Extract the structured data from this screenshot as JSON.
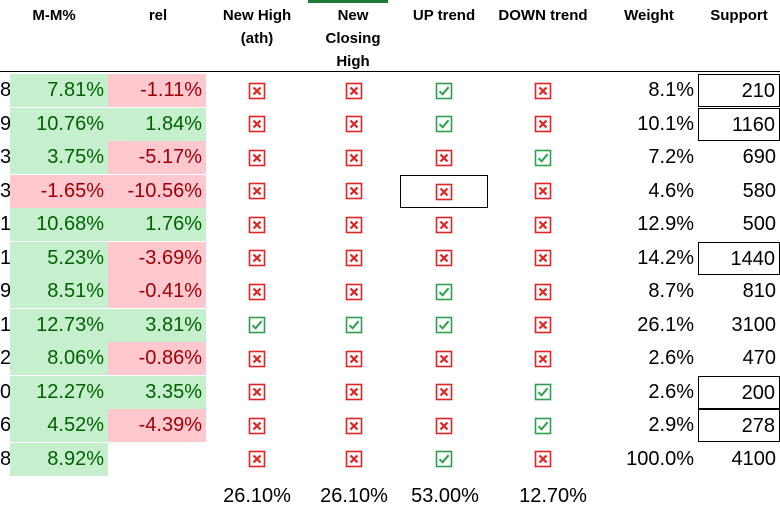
{
  "colors": {
    "positive_bg": "#c6efce",
    "positive_text": "#006100",
    "negative_bg": "#ffc7ce",
    "negative_text": "#9c0006",
    "check_green": "#2e9e4f",
    "cross_red": "#e02424"
  },
  "headers": {
    "mm": "M-M%",
    "rel": "rel",
    "new_high": "New High\n(ath)",
    "new_closing_high": "New\nClosing\nHigh",
    "up_trend": "UP trend",
    "down_trend": "DOWN trend",
    "weight": "Weight",
    "support": "Support"
  },
  "rows": [
    {
      "lead": "8",
      "mm": "7.81%",
      "mm_sign": "pos",
      "rel": "-1.11%",
      "rel_sign": "neg",
      "new_high": "cross",
      "new_closing_high": "cross",
      "up_trend": "check",
      "down_trend": "cross",
      "weight": "8.1%",
      "support": "210"
    },
    {
      "lead": "9",
      "mm": "10.76%",
      "mm_sign": "pos",
      "rel": "1.84%",
      "rel_sign": "pos",
      "new_high": "cross",
      "new_closing_high": "cross",
      "up_trend": "check",
      "down_trend": "cross",
      "weight": "10.1%",
      "support": "1160"
    },
    {
      "lead": "3",
      "mm": "3.75%",
      "mm_sign": "pos",
      "rel": "-5.17%",
      "rel_sign": "neg",
      "new_high": "cross",
      "new_closing_high": "cross",
      "up_trend": "cross",
      "down_trend": "check",
      "weight": "7.2%",
      "support": "690"
    },
    {
      "lead": "3",
      "mm": "-1.65%",
      "mm_sign": "neg",
      "rel": "-10.56%",
      "rel_sign": "neg",
      "new_high": "cross",
      "new_closing_high": "cross",
      "up_trend": "cross",
      "down_trend": "cross",
      "weight": "4.6%",
      "support": "580"
    },
    {
      "lead": "1",
      "mm": "10.68%",
      "mm_sign": "pos",
      "rel": "1.76%",
      "rel_sign": "pos",
      "new_high": "cross",
      "new_closing_high": "cross",
      "up_trend": "cross",
      "down_trend": "cross",
      "weight": "12.9%",
      "support": "500"
    },
    {
      "lead": "1",
      "mm": "5.23%",
      "mm_sign": "pos",
      "rel": "-3.69%",
      "rel_sign": "neg",
      "new_high": "cross",
      "new_closing_high": "cross",
      "up_trend": "cross",
      "down_trend": "cross",
      "weight": "14.2%",
      "support": "1440"
    },
    {
      "lead": "9",
      "mm": "8.51%",
      "mm_sign": "pos",
      "rel": "-0.41%",
      "rel_sign": "neg",
      "new_high": "cross",
      "new_closing_high": "cross",
      "up_trend": "check",
      "down_trend": "cross",
      "weight": "8.7%",
      "support": "810"
    },
    {
      "lead": "1",
      "mm": "12.73%",
      "mm_sign": "pos",
      "rel": "3.81%",
      "rel_sign": "pos",
      "new_high": "check",
      "new_closing_high": "check",
      "up_trend": "check",
      "down_trend": "cross",
      "weight": "26.1%",
      "support": "3100"
    },
    {
      "lead": "2",
      "mm": "8.06%",
      "mm_sign": "pos",
      "rel": "-0.86%",
      "rel_sign": "neg",
      "new_high": "cross",
      "new_closing_high": "cross",
      "up_trend": "cross",
      "down_trend": "cross",
      "weight": "2.6%",
      "support": "470"
    },
    {
      "lead": "0",
      "mm": "12.27%",
      "mm_sign": "pos",
      "rel": "3.35%",
      "rel_sign": "pos",
      "new_high": "cross",
      "new_closing_high": "cross",
      "up_trend": "cross",
      "down_trend": "check",
      "weight": "2.6%",
      "support": "200"
    },
    {
      "lead": "6",
      "mm": "4.52%",
      "mm_sign": "pos",
      "rel": "-4.39%",
      "rel_sign": "neg",
      "new_high": "cross",
      "new_closing_high": "cross",
      "up_trend": "cross",
      "down_trend": "check",
      "weight": "2.9%",
      "support": "278"
    },
    {
      "lead": "8",
      "mm": "8.92%",
      "mm_sign": "pos",
      "rel": "",
      "rel_sign": "none",
      "new_high": "cross",
      "new_closing_high": "cross",
      "up_trend": "check",
      "down_trend": "cross",
      "weight": "100.0%",
      "support": "4100"
    }
  ],
  "summary": {
    "new_high": "26.10%",
    "new_closing_high": "26.10%",
    "up_trend": "53.00%",
    "down_trend": "12.70%"
  }
}
